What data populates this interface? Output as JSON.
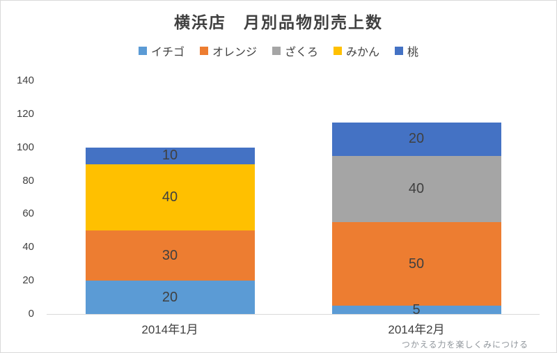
{
  "watermark": "つかえる力を楽しくみにつける",
  "chart_data": {
    "type": "bar",
    "stacked": true,
    "title": "横浜店　月別品物別売上数",
    "categories": [
      "2014年1月",
      "2014年2月"
    ],
    "series": [
      {
        "name": "イチゴ",
        "color": "#5B9BD5",
        "values": [
          20,
          5
        ]
      },
      {
        "name": "オレンジ",
        "color": "#ED7D31",
        "values": [
          30,
          50
        ]
      },
      {
        "name": "ざくろ",
        "color": "#A5A5A5",
        "values": [
          0,
          40
        ]
      },
      {
        "name": "みかん",
        "color": "#FFC000",
        "values": [
          40,
          0
        ]
      },
      {
        "name": "桃",
        "color": "#4472C4",
        "values": [
          10,
          20
        ]
      }
    ],
    "totals": [
      100,
      115
    ],
    "xlabel": "",
    "ylabel": "",
    "ylim": [
      0,
      140
    ],
    "yticks": [
      0,
      20,
      40,
      60,
      80,
      100,
      120,
      140
    ],
    "grid": false,
    "legend_position": "top",
    "data_labels": true,
    "label_color": "#404040"
  }
}
